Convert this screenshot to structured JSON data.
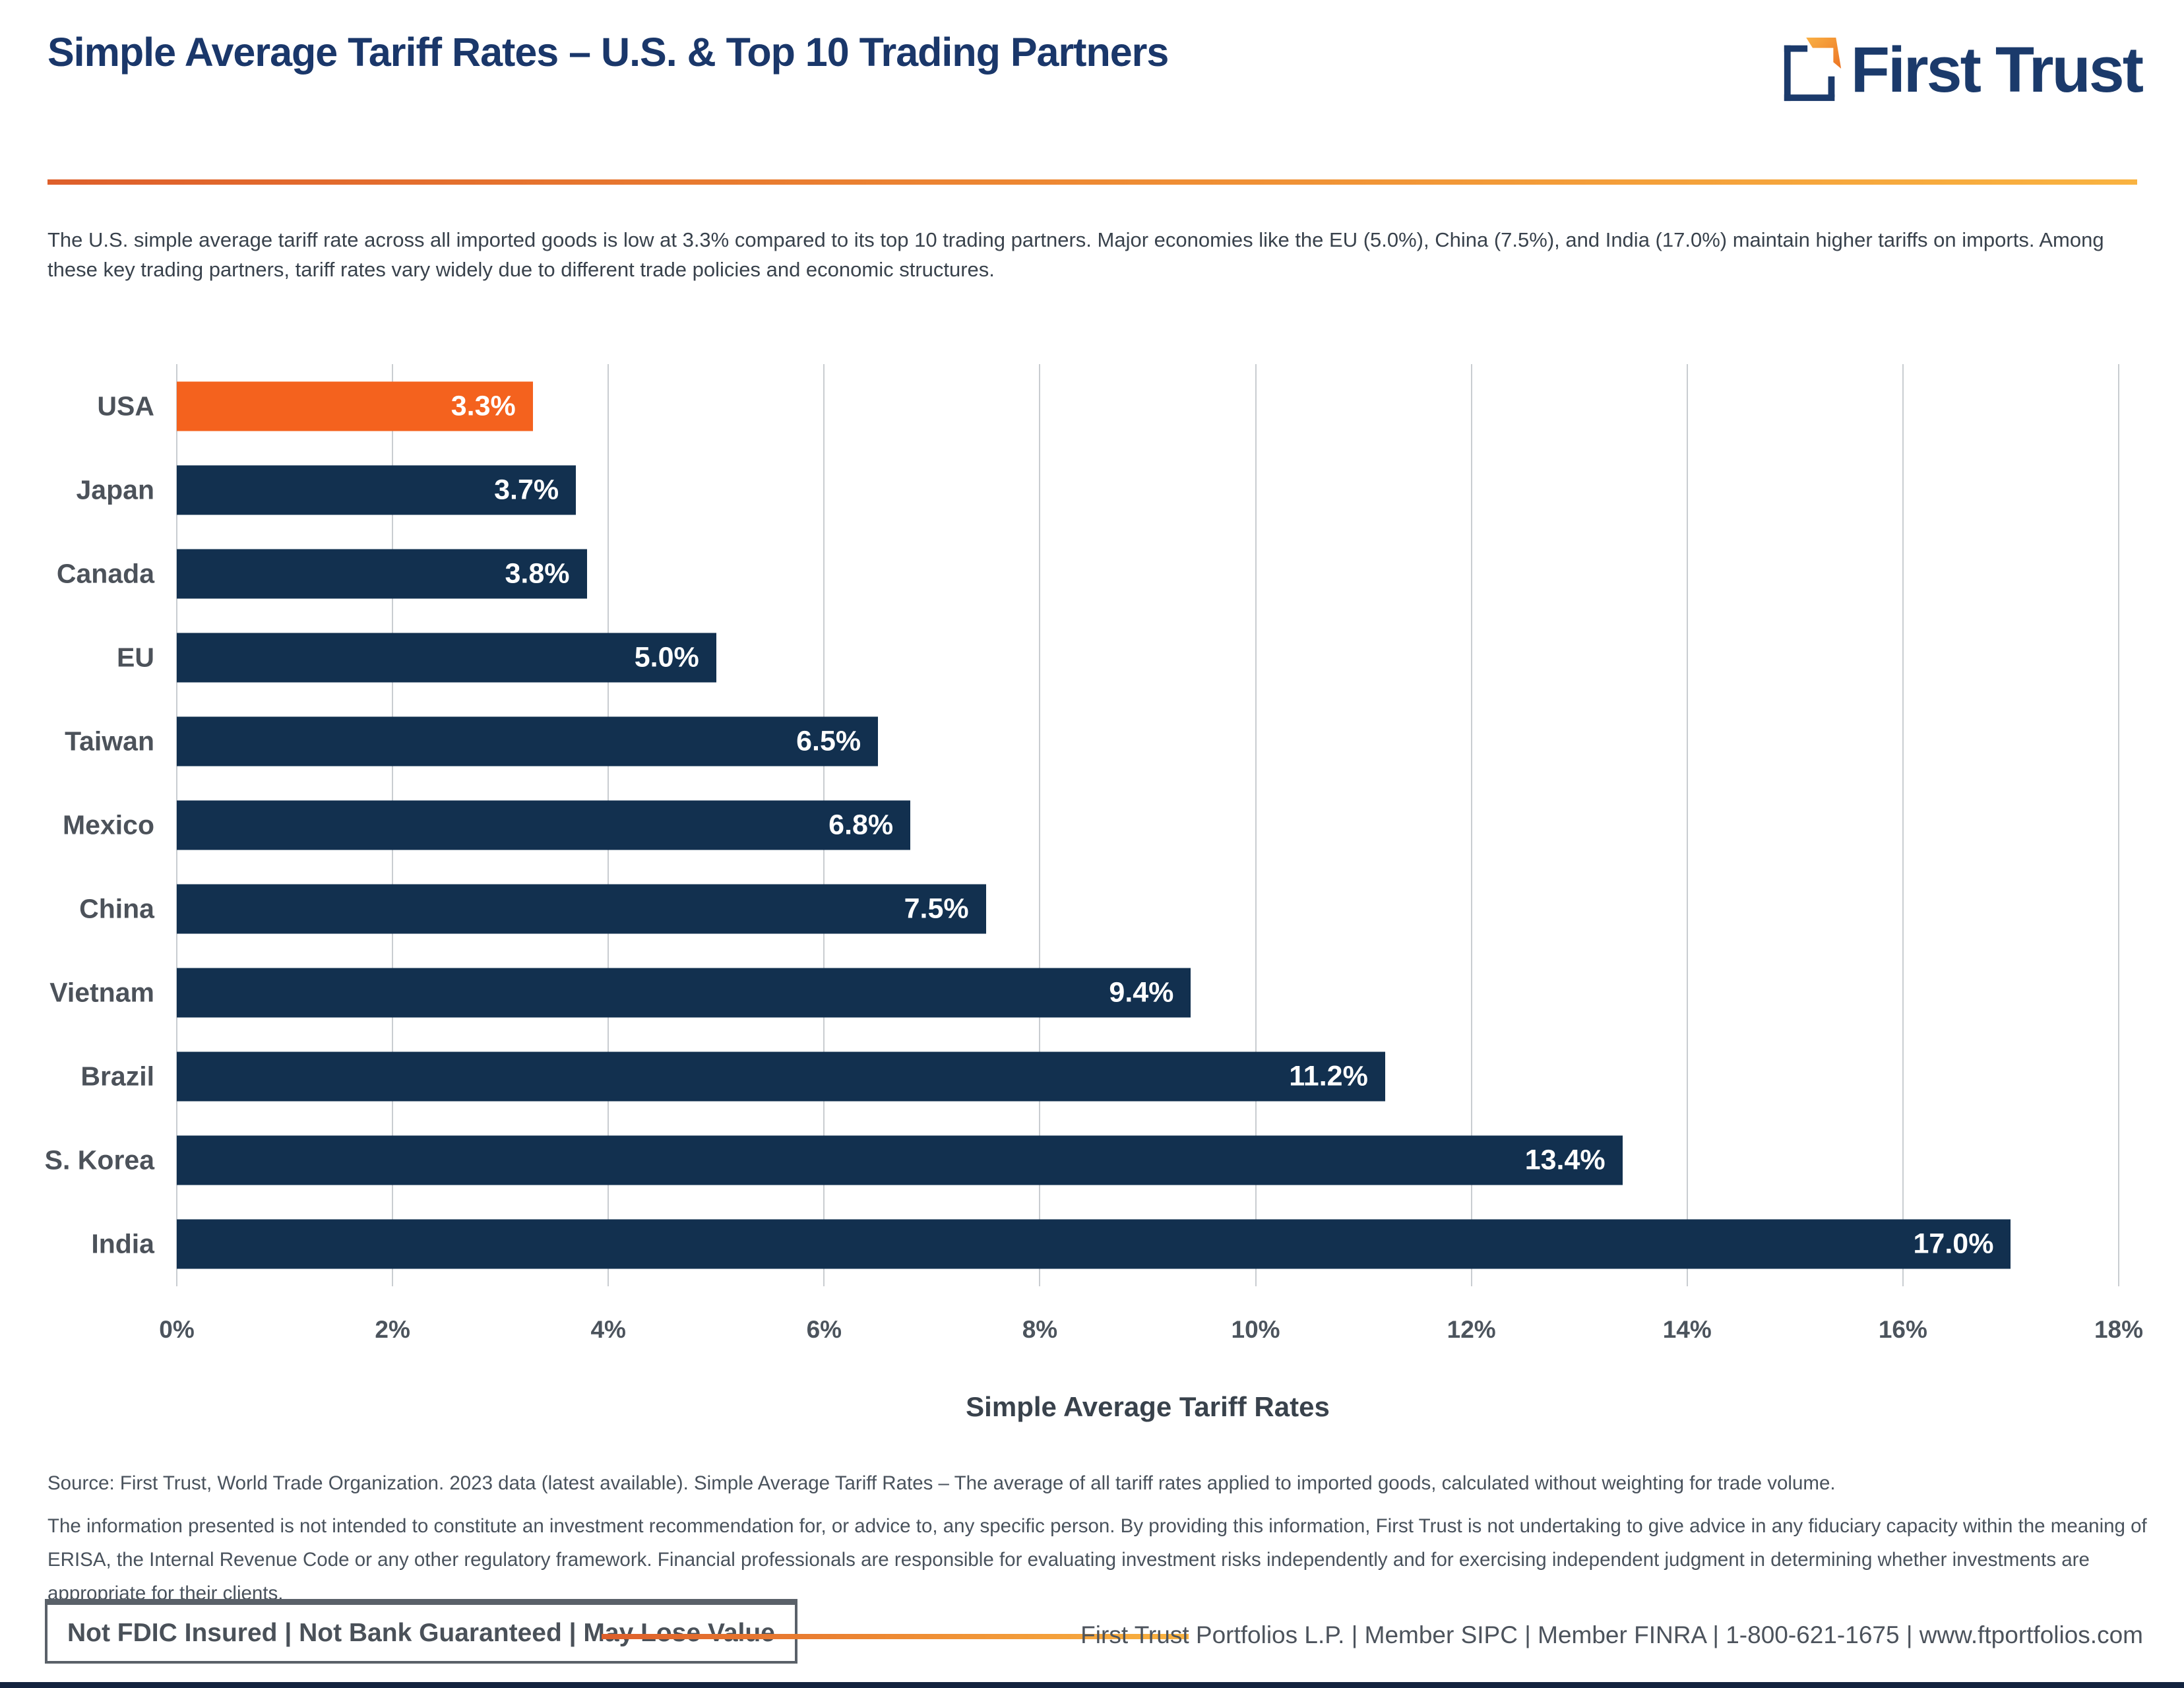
{
  "header": {
    "title": "Simple Average Tariff Rates – U.S. & Top 10 Trading Partners",
    "logo_text": "First Trust"
  },
  "intro": {
    "text": "The U.S. simple average tariff rate across all imported goods is low at 3.3% compared to its top 10 trading partners. Major economies like the EU (5.0%), China (7.5%), and India (17.0%) maintain higher tariffs on imports. Among these key trading partners, tariff rates vary widely due to different trade policies and economic structures."
  },
  "chart_data": {
    "type": "bar",
    "orientation": "horizontal",
    "categories": [
      "USA",
      "Japan",
      "Canada",
      "EU",
      "Taiwan",
      "Mexico",
      "China",
      "Vietnam",
      "Brazil",
      "S. Korea",
      "India"
    ],
    "values": [
      3.3,
      3.7,
      3.8,
      5.0,
      6.5,
      6.8,
      7.5,
      9.4,
      11.2,
      13.4,
      17.0
    ],
    "value_labels": [
      "3.3%",
      "3.7%",
      "3.8%",
      "5.0%",
      "6.5%",
      "6.8%",
      "7.5%",
      "9.4%",
      "11.2%",
      "13.4%",
      "17.0%"
    ],
    "highlight_index": 0,
    "xlabel": "Simple Average Tariff Rates",
    "xlim": [
      0,
      18
    ],
    "x_ticks": [
      "0%",
      "2%",
      "4%",
      "6%",
      "8%",
      "10%",
      "12%",
      "14%",
      "16%",
      "18%"
    ],
    "grid": true,
    "legend": false,
    "colors": {
      "highlight_bar": "#F4621E",
      "default_bar": "#12304F",
      "gridline": "#C9CDD1",
      "value_text": "#FFFFFF"
    }
  },
  "footnotes": {
    "source": "Source: First Trust, World Trade Organization. 2023 data (latest available). Simple Average Tariff Rates – The average of all tariff rates applied to imported goods, calculated without weighting for trade volume.",
    "disclaimer": "The information presented is not intended to constitute an investment recommendation for, or advice to, any specific person. By providing this information, First Trust is not undertaking to give advice in any fiduciary capacity within the meaning of ERISA, the Internal Revenue Code or any other regulatory framework. Financial professionals are responsible for evaluating investment risks independently and for exercising independent judgment in determining whether investments are appropriate for their clients."
  },
  "footer": {
    "disclaimer_box": "Not FDIC Insured | Not Bank Guaranteed | May Lose Value",
    "company_line": "First Trust Portfolios L.P. | Member SIPC | Member FINRA | 1-800-621-1675 | www.ftportfolios.com"
  },
  "colors": {
    "title_navy": "#1A376A",
    "logo_navy": "#1B3A6B",
    "accent_orange": "#F4621E",
    "rule_gradient_start": "#DE5F2B",
    "rule_gradient_end": "#F9B341",
    "bottom_strip_navy": "#13233F"
  }
}
